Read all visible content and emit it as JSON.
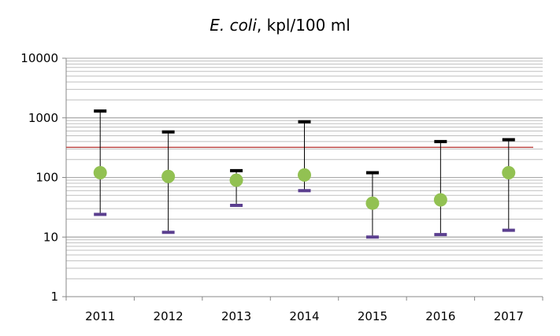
{
  "chart_data": {
    "type": "scatter",
    "title_italic": "E. coli",
    "title_rest": ", kpl/100 ml",
    "categories": [
      "2011",
      "2012",
      "2013",
      "2014",
      "2015",
      "2016",
      "2017"
    ],
    "y_scale": "log",
    "ylim": [
      1,
      10000
    ],
    "y_ticks": [
      {
        "value": 1,
        "label": "1"
      },
      {
        "value": 10,
        "label": "10"
      },
      {
        "value": 100,
        "label": "100"
      },
      {
        "value": 1000,
        "label": "1000"
      },
      {
        "value": 10000,
        "label": "10000"
      }
    ],
    "grid": true,
    "series": [
      {
        "role": "max",
        "values": [
          1300,
          580,
          130,
          860,
          120,
          400,
          430
        ]
      },
      {
        "role": "center",
        "values": [
          120,
          104,
          90,
          110,
          37,
          42,
          120
        ]
      },
      {
        "role": "min",
        "values": [
          24,
          12,
          34,
          60,
          10,
          11,
          13
        ]
      }
    ],
    "reference_line": 320,
    "colors": {
      "marker": "#92c152",
      "max_cap": "#000000",
      "min_cap": "#5b3f8f",
      "reference": "#c0504d",
      "grid": "#bfbfbf",
      "axis": "#888888"
    }
  }
}
